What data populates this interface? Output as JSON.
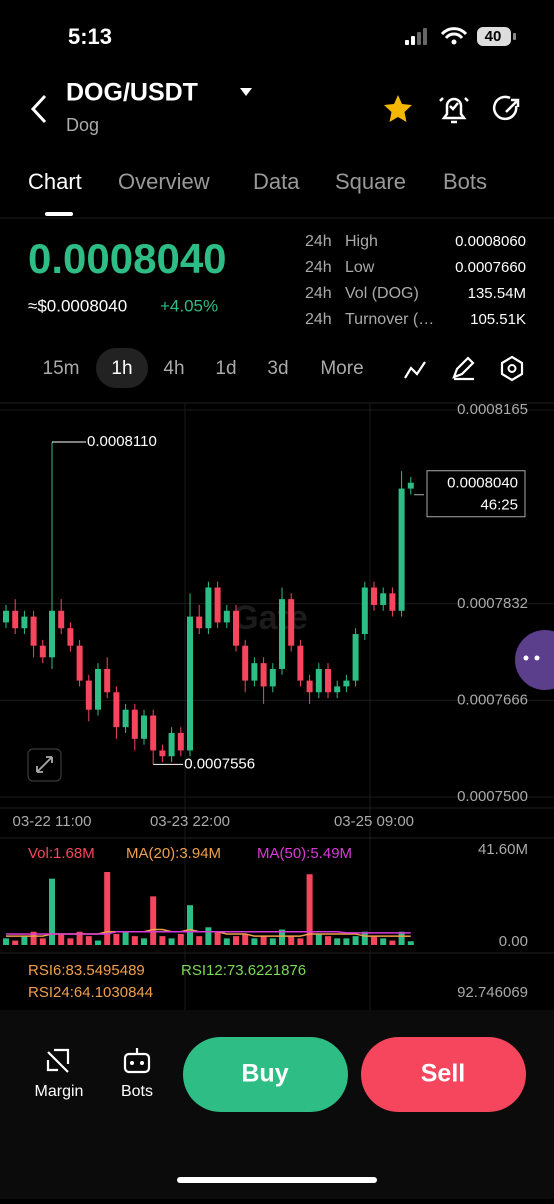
{
  "status": {
    "time": "5:13",
    "battery": "40"
  },
  "header": {
    "pair": "DOG/USDT",
    "name": "Dog"
  },
  "tabs": [
    "Chart",
    "Overview",
    "Data",
    "Square",
    "Bots"
  ],
  "price": {
    "last": "0.0008040",
    "usd": "≈$0.0008040",
    "change": "+4.05%"
  },
  "stats": [
    {
      "period": "24h",
      "label": "High",
      "value": "0.0008060"
    },
    {
      "period": "24h",
      "label": "Low",
      "value": "0.0007660"
    },
    {
      "period": "24h",
      "label": "Vol (DOG)",
      "value": "135.54M"
    },
    {
      "period": "24h",
      "label": "Turnover (…",
      "value": "105.51K"
    }
  ],
  "intervals": [
    "15m",
    "1h",
    "4h",
    "1d",
    "3d",
    "More"
  ],
  "chart_data": [
    {
      "type": "candlestick",
      "watermark": "Gate",
      "up_color": "#2ebd85",
      "down_color": "#f6465d",
      "categories": [
        null,
        null,
        null,
        null,
        null,
        "03-22 11:00",
        null,
        null,
        null,
        null,
        null,
        null,
        null,
        null,
        null,
        null,
        null,
        null,
        null,
        null,
        "03-23 22:00",
        null,
        null,
        null,
        null,
        null,
        null,
        null,
        null,
        null,
        null,
        null,
        null,
        null,
        null,
        null,
        null,
        null,
        null,
        null,
        "03-25 09:00",
        null,
        null,
        null,
        null
      ],
      "open": [
        0.00078,
        0.000782,
        0.000779,
        0.000781,
        0.000776,
        0.000774,
        0.000782,
        0.000779,
        0.000776,
        0.00077,
        0.000765,
        0.000772,
        0.000768,
        0.000762,
        0.000765,
        0.00076,
        0.000764,
        0.000758,
        0.000757,
        0.000761,
        0.000758,
        0.000781,
        0.000779,
        0.000786,
        0.00078,
        0.000782,
        0.000776,
        0.00077,
        0.000773,
        0.000769,
        0.000772,
        0.000784,
        0.000776,
        0.00077,
        0.000768,
        0.000772,
        0.000768,
        0.000769,
        0.00077,
        0.000778,
        0.000786,
        0.000783,
        0.000785,
        0.000782,
        0.000803
      ],
      "high": [
        0.000783,
        0.000784,
        0.000782,
        0.000782,
        0.000777,
        0.000811,
        0.000784,
        0.00078,
        0.000777,
        0.000771,
        0.000773,
        0.000774,
        0.000769,
        0.000766,
        0.000766,
        0.000765,
        0.000765,
        0.000759,
        0.000762,
        0.000762,
        0.000785,
        0.000783,
        0.000787,
        0.000787,
        0.000783,
        0.000783,
        0.000777,
        0.000774,
        0.000774,
        0.000773,
        0.000786,
        0.000785,
        0.000777,
        0.000771,
        0.000773,
        0.000773,
        0.00077,
        0.000771,
        0.000779,
        0.000787,
        0.000787,
        0.000786,
        0.000786,
        0.000806,
        0.000805
      ],
      "low": [
        0.000779,
        0.000778,
        0.000778,
        0.000774,
        0.000773,
        0.000772,
        0.000778,
        0.000775,
        0.000769,
        0.000763,
        0.000764,
        0.000767,
        0.00076,
        0.000761,
        0.000758,
        0.000759,
        0.0007556,
        0.000756,
        0.000756,
        0.000757,
        0.000757,
        0.000778,
        0.000778,
        0.000779,
        0.000779,
        0.000775,
        0.000768,
        0.000769,
        0.000766,
        0.000768,
        0.000771,
        0.000775,
        0.000769,
        0.000766,
        0.000767,
        0.000767,
        0.000767,
        0.000768,
        0.000769,
        0.000777,
        0.000782,
        0.000782,
        0.000781,
        0.000781,
        0.000802
      ],
      "close": [
        0.000782,
        0.000779,
        0.000781,
        0.000776,
        0.000774,
        0.000782,
        0.000779,
        0.000776,
        0.00077,
        0.000765,
        0.000772,
        0.000768,
        0.000762,
        0.000765,
        0.00076,
        0.000764,
        0.000758,
        0.000757,
        0.000761,
        0.000758,
        0.000781,
        0.000779,
        0.000786,
        0.00078,
        0.000782,
        0.000776,
        0.00077,
        0.000773,
        0.000769,
        0.000772,
        0.000784,
        0.000776,
        0.00077,
        0.000768,
        0.000772,
        0.000768,
        0.000769,
        0.00077,
        0.000778,
        0.000786,
        0.000783,
        0.000785,
        0.000782,
        0.000803,
        0.000804
      ],
      "ylim": [
        0.00075,
        0.0008165
      ],
      "yticks": [
        {
          "value": 0.0008165,
          "label": "0.0008165"
        },
        {
          "value": 0.0007832,
          "label": "0.0007832"
        },
        {
          "value": 0.0007666,
          "label": "0.0007666"
        },
        {
          "value": 0.00075,
          "label": "0.0007500"
        }
      ],
      "high_label": {
        "value": 0.000811,
        "label": "0.0008110"
      },
      "low_label": {
        "value": 0.0007556,
        "label": "0.0007556"
      },
      "price_tag": {
        "value": 0.000804,
        "label": "0.0008040",
        "countdown": "46:25"
      }
    },
    {
      "type": "bar",
      "legend": {
        "vol": "Vol:1.68M",
        "ma20": "MA(20):3.94M",
        "ma50": "MA(50):5.49M"
      },
      "values": [
        3,
        2,
        4,
        6,
        3,
        30,
        5,
        3,
        6,
        4,
        2,
        33,
        5,
        6,
        4,
        3,
        22,
        4,
        3,
        5,
        18,
        4,
        8,
        6,
        3,
        4,
        5,
        3,
        4,
        3,
        7,
        4,
        3,
        32,
        5,
        4,
        3,
        3,
        4,
        6,
        4,
        3,
        2,
        6,
        1.68
      ],
      "ma20": [
        4,
        4,
        4,
        4,
        4,
        5,
        5,
        5,
        5,
        5,
        5,
        6,
        6,
        6,
        6,
        6,
        7,
        7,
        6,
        6,
        7,
        6,
        6,
        6,
        5,
        5,
        5,
        4,
        4,
        4,
        4,
        4,
        4,
        5,
        5,
        5,
        5,
        5,
        5,
        4,
        4,
        4,
        4,
        4,
        3.94
      ],
      "ma50": [
        5,
        5,
        5,
        5,
        5,
        5,
        5,
        5,
        5,
        5,
        5,
        5,
        6,
        6,
        6,
        6,
        6,
        6,
        6,
        6,
        6,
        6,
        6,
        6,
        6,
        6,
        6,
        6,
        6,
        6,
        6,
        6,
        6,
        6,
        6,
        6,
        6,
        5.5,
        5.5,
        5.5,
        5.5,
        5.5,
        5.5,
        5.5,
        5.49
      ],
      "ma20_color": "#f0a04b",
      "ma50_color": "#d63bd6",
      "ylim": [
        0,
        41.6
      ],
      "yticks": [
        {
          "value": 41.6,
          "label": "41.60M"
        },
        {
          "value": 0,
          "label": "0.00"
        }
      ]
    }
  ],
  "rsi": {
    "rsi6": "RSI6:83.5495489",
    "rsi12": "RSI12:73.6221876",
    "rsi24": "RSI24:64.1030844",
    "tick": "92.746069"
  },
  "bottom": {
    "margin": "Margin",
    "bots": "Bots",
    "buy": "Buy",
    "sell": "Sell"
  }
}
